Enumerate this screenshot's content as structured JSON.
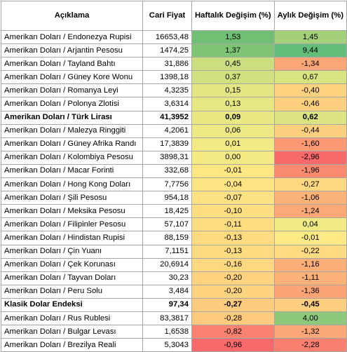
{
  "headers": {
    "description": "Açıklama",
    "price": "Cari Fiyat",
    "weekly": "Haftalık Değişim (%)",
    "monthly": "Aylık Değişim (%)"
  },
  "rows": [
    {
      "name": "Amerikan Doları / Endonezya Rupisi",
      "price": "16653,48",
      "weekly": "1,53",
      "monthly": "1,45",
      "weekly_color": "#70bf73",
      "monthly_color": "#a3d078",
      "bold": false
    },
    {
      "name": "Amerikan Doları / Arjantin Pesosu",
      "price": "1474,25",
      "weekly": "1,37",
      "monthly": "9,44",
      "weekly_color": "#7ec474",
      "monthly_color": "#63be7b",
      "bold": false
    },
    {
      "name": "Amerikan Doları / Tayland Bahtı",
      "price": "31,886",
      "weekly": "0,45",
      "monthly": "-1,34",
      "weekly_color": "#cbdf80",
      "monthly_color": "#fba676",
      "bold": false
    },
    {
      "name": "Amerikan Doları / Güney Kore Wonu",
      "price": "1398,18",
      "weekly": "0,37",
      "monthly": "0,67",
      "weekly_color": "#d2e17f",
      "monthly_color": "#d9e481",
      "bold": false
    },
    {
      "name": "Amerikan Doları / Romanya Leyi",
      "price": "4,3235",
      "weekly": "0,15",
      "monthly": "-0,40",
      "weekly_color": "#e4e683",
      "monthly_color": "#fdd27f",
      "bold": false
    },
    {
      "name": "Amerikan Doları / Polonya Zlotisi",
      "price": "3,6314",
      "weekly": "0,13",
      "monthly": "-0,46",
      "weekly_color": "#e6e683",
      "monthly_color": "#fdcf7e",
      "bold": false
    },
    {
      "name": "Amerikan Doları / Türk Lirası",
      "price": "41,3952",
      "weekly": "0,09",
      "monthly": "0,62",
      "weekly_color": "#eae883",
      "monthly_color": "#dbe481",
      "bold": true
    },
    {
      "name": "Amerikan Doları / Malezya Ringgiti",
      "price": "4,2061",
      "weekly": "0,06",
      "monthly": "-0,44",
      "weekly_color": "#ece884",
      "monthly_color": "#fdd07f",
      "bold": false
    },
    {
      "name": "Amerikan Doları / Güney Afrika Randı",
      "price": "17,3839",
      "weekly": "0,01",
      "monthly": "-1,60",
      "weekly_color": "#f1e984",
      "monthly_color": "#fa9973",
      "bold": false
    },
    {
      "name": "Amerikan Doları / Kolombiya Pesosu",
      "price": "3898,31",
      "weekly": "0,00",
      "monthly": "-2,96",
      "weekly_color": "#f3ea84",
      "monthly_color": "#f8696b",
      "bold": false
    },
    {
      "name": "Amerikan Doları / Macar Forinti",
      "price": "332,68",
      "weekly": "-0,01",
      "monthly": "-1,96",
      "weekly_color": "#fee683",
      "monthly_color": "#fa8b70",
      "bold": false
    },
    {
      "name": "Amerikan Doları / Hong Kong Doları",
      "price": "7,7756",
      "weekly": "-0,04",
      "monthly": "-0,27",
      "weekly_color": "#fee482",
      "monthly_color": "#fed881",
      "bold": false
    },
    {
      "name": "Amerikan Doları / Şili Pesosu",
      "price": "954,18",
      "weekly": "-0,07",
      "monthly": "-1,06",
      "weekly_color": "#fee182",
      "monthly_color": "#fcb379",
      "bold": false
    },
    {
      "name": "Amerikan Doları / Meksika Pesosu",
      "price": "18,425",
      "weekly": "-0,10",
      "monthly": "-1,24",
      "weekly_color": "#fede81",
      "monthly_color": "#fbaa77",
      "bold": false
    },
    {
      "name": "Amerikan Doları / Filipinler Pesosu",
      "price": "57,107",
      "weekly": "-0,11",
      "monthly": "0,04",
      "weekly_color": "#fedd81",
      "monthly_color": "#f0e984",
      "bold": false
    },
    {
      "name": "Amerikan Doları / Hindistan Rupisi",
      "price": "88,159",
      "weekly": "-0,13",
      "monthly": "-0,01",
      "weekly_color": "#fedb81",
      "monthly_color": "#feea84",
      "bold": false
    },
    {
      "name": "Amerikan Doları / Çin Yuanı",
      "price": "7,1151",
      "weekly": "-0,13",
      "monthly": "-0,22",
      "weekly_color": "#fedb81",
      "monthly_color": "#feda81",
      "bold": false
    },
    {
      "name": "Amerikan Doları / Çek Korunası",
      "price": "20,6914",
      "weekly": "-0,16",
      "monthly": "-1,16",
      "weekly_color": "#fed880",
      "monthly_color": "#fcae78",
      "bold": false
    },
    {
      "name": "Amerikan Doları / Tayvan Doları",
      "price": "30,23",
      "weekly": "-0,20",
      "monthly": "-1,11",
      "weekly_color": "#fed380",
      "monthly_color": "#fcb179",
      "bold": false
    },
    {
      "name": "Amerikan Doları / Peru Solu",
      "price": "3,484",
      "weekly": "-0,20",
      "monthly": "-1,36",
      "weekly_color": "#fed380",
      "monthly_color": "#fba476",
      "bold": false
    },
    {
      "name": "Klasik Dolar Endeksi",
      "price": "97,34",
      "weekly": "-0,27",
      "monthly": "-0,45",
      "weekly_color": "#fdcb7e",
      "monthly_color": "#fdcf7f",
      "bold": true
    },
    {
      "name": "Amerikan Doları / Rus Rublesi",
      "price": "83,3817",
      "weekly": "-0,28",
      "monthly": "4,00",
      "weekly_color": "#fdca7e",
      "monthly_color": "#8ec97b",
      "bold": false
    },
    {
      "name": "Amerikan Doları / Bulgar Levası",
      "price": "1,6538",
      "weekly": "-0,82",
      "monthly": "-1,32",
      "weekly_color": "#f98370",
      "monthly_color": "#fba777",
      "bold": false
    },
    {
      "name": "Amerikan Doları / Brezilya Reali",
      "price": "5,3043",
      "weekly": "-0,96",
      "monthly": "-2,28",
      "weekly_color": "#f8696b",
      "monthly_color": "#f97f6e",
      "bold": false
    }
  ]
}
